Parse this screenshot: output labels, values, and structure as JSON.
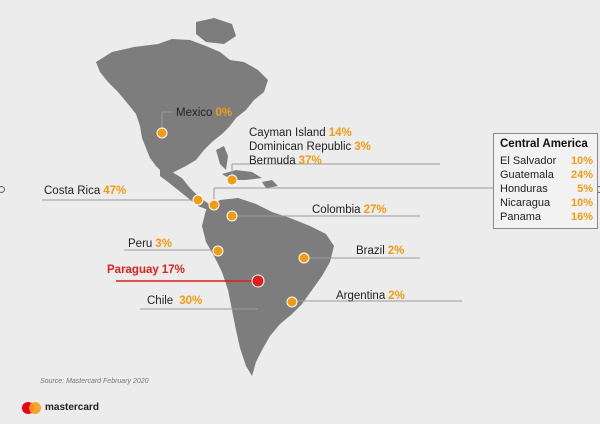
{
  "labels": {
    "mexico": {
      "name": "Mexico",
      "pct": "0%"
    },
    "cayman": {
      "name": "Cayman Island",
      "pct": "14%"
    },
    "dominican": {
      "name": "Dominican Republic",
      "pct": "3%"
    },
    "bermuda": {
      "name": "Bermuda",
      "pct": "37%"
    },
    "costa_rica": {
      "name": "Costa Rica",
      "pct": "47%"
    },
    "colombia": {
      "name": "Colombia",
      "pct": "27%"
    },
    "peru": {
      "name": "Peru",
      "pct": "3%"
    },
    "brazil": {
      "name": "Brazil",
      "pct": "2%"
    },
    "paraguay": {
      "name": "Paraguay",
      "pct": "17%"
    },
    "chile": {
      "name": "Chile",
      "pct": "30%"
    },
    "argentina": {
      "name": "Argentina",
      "pct": "2%"
    }
  },
  "central_america": {
    "title": "Central America",
    "rows": [
      {
        "name": "El Salvador",
        "pct": "10%"
      },
      {
        "name": "Guatemala",
        "pct": "24%"
      },
      {
        "name": "Honduras",
        "pct": "5%"
      },
      {
        "name": "Nicaragua",
        "pct": "10%"
      },
      {
        "name": "Panama",
        "pct": "16%"
      }
    ]
  },
  "source": "Source: Mastercard February 2020",
  "brand": {
    "name": "mastercard"
  },
  "colors": {
    "land": "#7d7d7d",
    "marker": "#f39c12",
    "highlight": "#e0201a",
    "background": "#ececec"
  }
}
